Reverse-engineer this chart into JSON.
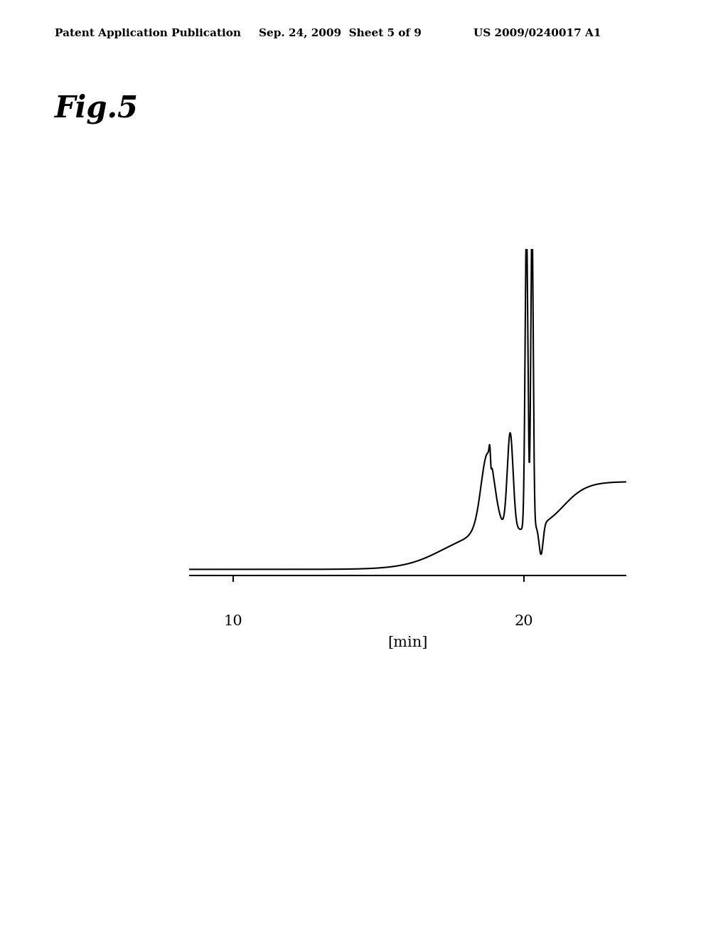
{
  "header_left": "Patent Application Publication",
  "header_mid": "Sep. 24, 2009  Sheet 5 of 9",
  "header_right": "US 2009/0240017 A1",
  "fig_label": "Fig.5",
  "xlabel": "[min]",
  "xticks": [
    10,
    20
  ],
  "background_color": "#ffffff",
  "line_color": "#000000",
  "header_fontsize": 11,
  "figlabel_fontsize": 30
}
